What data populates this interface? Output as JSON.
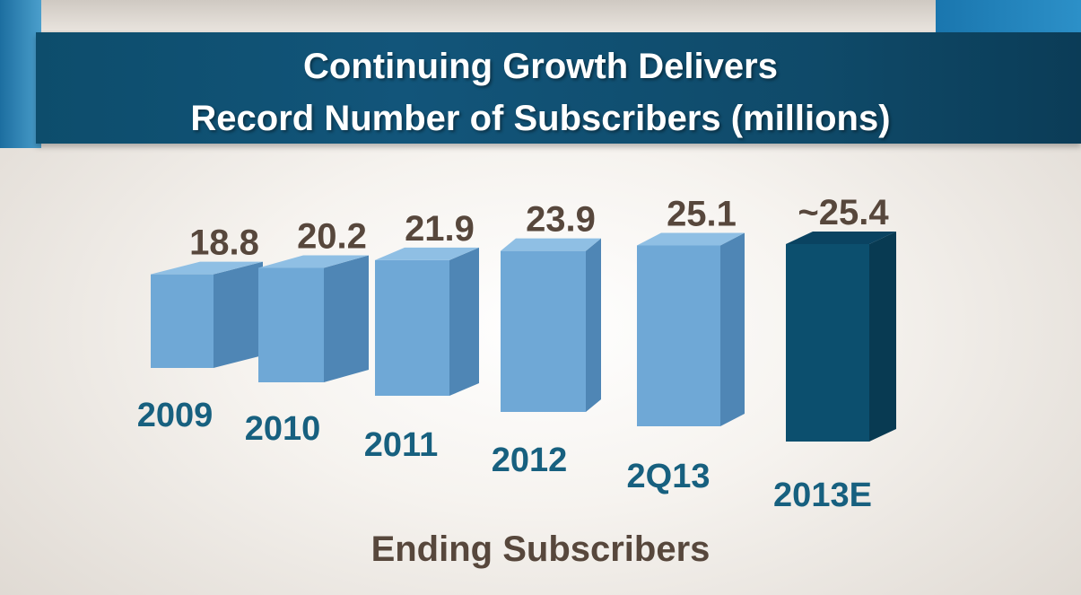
{
  "chart_data": {
    "type": "bar",
    "title_lines": [
      "Continuing Growth Delivers",
      "Record Number of Subscribers (millions)"
    ],
    "xlabel": "Ending Subscribers",
    "ylabel": "",
    "categories": [
      "2009",
      "2010",
      "2011",
      "2012",
      "2Q13",
      "2013E"
    ],
    "value_labels": [
      "18.8",
      "20.2",
      "21.9",
      "23.9",
      "25.1",
      "~25.4"
    ],
    "values": [
      18.8,
      20.2,
      21.9,
      23.9,
      25.1,
      25.4
    ],
    "estimated": [
      false,
      false,
      false,
      false,
      false,
      true
    ],
    "colors": {
      "actual": "#6fa8d6",
      "estimate": "#0c4f6e",
      "title_bar": "#12557a",
      "value_text": "#57473c",
      "category_text": "#17607f"
    },
    "style": "3d-box-bars",
    "grid": false,
    "legend": "none"
  }
}
